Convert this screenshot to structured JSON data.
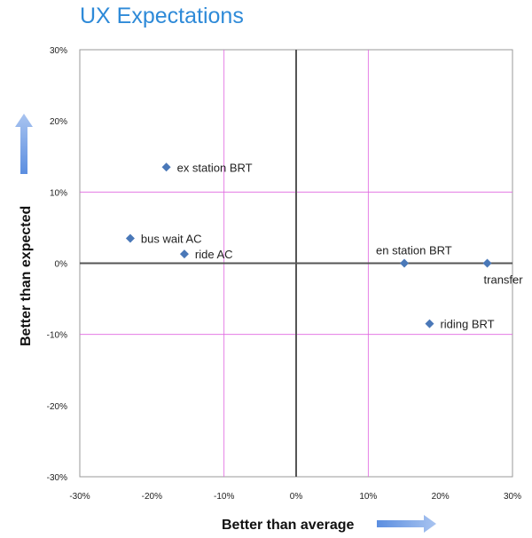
{
  "chart_data": {
    "type": "scatter",
    "title": "UX Expectations",
    "xlabel": "Better than average",
    "ylabel": "Better  than  expected",
    "xlim": [
      -30,
      30
    ],
    "ylim": [
      -30,
      30
    ],
    "x_ticks": [
      -30,
      -20,
      -10,
      0,
      10,
      20,
      30
    ],
    "y_ticks": [
      -30,
      -20,
      -10,
      0,
      10,
      20,
      30
    ],
    "tick_format": "percent",
    "grid": true,
    "grid_lines": [
      -10,
      10
    ],
    "colors": {
      "title": "#2e8ad8",
      "marker": "#4a78b8",
      "grid": "#e066e0",
      "axis": "#555555",
      "arrow": "#7ea6e8"
    },
    "points": [
      {
        "label": "ex station BRT",
        "x": -18,
        "y": 13.5
      },
      {
        "label": "bus wait AC",
        "x": -23,
        "y": 3.5
      },
      {
        "label": "ride AC",
        "x": -15.5,
        "y": 1.3
      },
      {
        "label": "en station BRT",
        "x": 15,
        "y": 0
      },
      {
        "label": "transfer",
        "x": 26.5,
        "y": 0
      },
      {
        "label": "riding BRT",
        "x": 18.5,
        "y": -8.5
      }
    ]
  }
}
